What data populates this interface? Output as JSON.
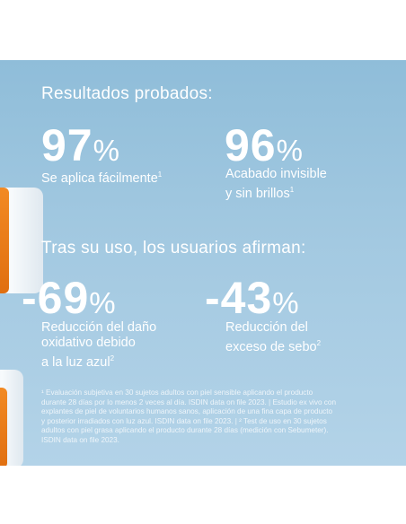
{
  "heading1": "Resultados probados:",
  "stat1": {
    "value": "97",
    "unit": "%",
    "desc": "Se aplica fácilmente",
    "sup": "1"
  },
  "stat2": {
    "value": "96",
    "unit": "%",
    "desc_line1": "Acabado invisible",
    "desc_line2": "y sin brillos",
    "sup": "1"
  },
  "heading2": "Tras su uso, los usuarios afirman:",
  "stat3": {
    "value": "-69",
    "unit": "%",
    "desc_line1": "Reducción del daño",
    "desc_line2": "oxidativo debido",
    "desc_line3": "a la luz azul",
    "sup": "2"
  },
  "stat4": {
    "value": "-43",
    "unit": "%",
    "desc_line1": "Reducción del",
    "desc_line2": "exceso de sebo",
    "sup": "2"
  },
  "footnote": {
    "line1": "¹ Evaluación subjetiva en 30 sujetos adultos con piel sensible aplicando el producto",
    "line2": "durante 28 días por lo menos 2 veces al día. ISDIN data on file 2023. | Estudio ex vivo con",
    "line3": "explantes de piel de voluntarios humanos sanos, aplicación de una fina capa de producto",
    "line4": "y posterior irradiados con luz azul. ISDIN data on file 2023. | ² Test de uso en 30 sujetos",
    "line5": "adultos con piel grasa aplicando el producto durante 28 días (medición con Sebumeter).",
    "line6": "ISDIN data on file 2023."
  },
  "colors": {
    "background": "#a3c9e1",
    "accent_orange": "#f28a23",
    "text": "#ffffff"
  }
}
